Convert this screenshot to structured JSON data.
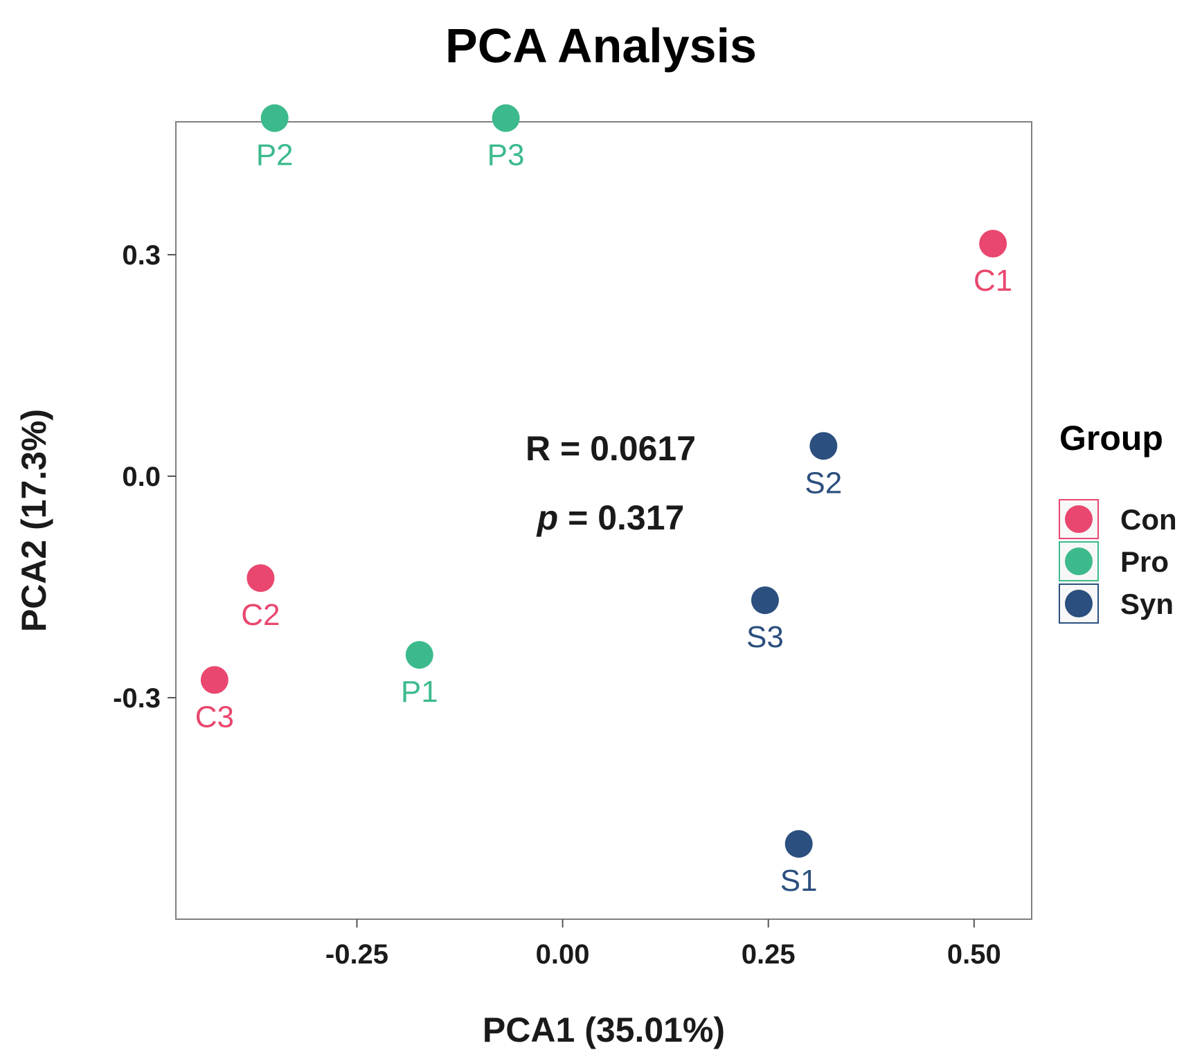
{
  "chart_data": {
    "type": "scatter",
    "title": "PCA Analysis",
    "xlabel": "PCA1 (35.01%)",
    "ylabel": "PCA2 (17.3%)",
    "xlim": [
      -0.47,
      0.57
    ],
    "ylim": [
      -0.6,
      0.48
    ],
    "x_ticks": [
      -0.25,
      0.0,
      0.25,
      0.5
    ],
    "x_tick_labels": [
      "-0.25",
      "0.00",
      "0.25",
      "0.50"
    ],
    "y_ticks": [
      -0.3,
      0.0,
      0.3
    ],
    "y_tick_labels": [
      "-0.3",
      "0.0",
      "0.3"
    ],
    "grid": false,
    "legend": {
      "title": "Group",
      "position": "right",
      "entries": [
        {
          "name": "Con",
          "color": "#E9476F"
        },
        {
          "name": "Pro",
          "color": "#3DBA8C"
        },
        {
          "name": "Syn",
          "color": "#2B4F7E"
        }
      ]
    },
    "annotations": {
      "r_text": "R = 0.0617",
      "p_symbol": "p",
      "p_value_text": " = 0.317"
    },
    "series": [
      {
        "name": "Con",
        "color": "#E9476F",
        "points": [
          {
            "label": "C1",
            "x": 0.523,
            "y": 0.315
          },
          {
            "label": "C2",
            "x": -0.367,
            "y": -0.138
          },
          {
            "label": "C3",
            "x": -0.423,
            "y": -0.276
          }
        ]
      },
      {
        "name": "Pro",
        "color": "#3DBA8C",
        "points": [
          {
            "label": "P1",
            "x": -0.174,
            "y": -0.242
          },
          {
            "label": "P2",
            "x": -0.35,
            "y": 0.485
          },
          {
            "label": "P3",
            "x": -0.069,
            "y": 0.485
          }
        ]
      },
      {
        "name": "Syn",
        "color": "#2B4F7E",
        "points": [
          {
            "label": "S1",
            "x": 0.287,
            "y": -0.498
          },
          {
            "label": "S2",
            "x": 0.317,
            "y": 0.041
          },
          {
            "label": "S3",
            "x": 0.246,
            "y": -0.168
          }
        ]
      }
    ]
  }
}
